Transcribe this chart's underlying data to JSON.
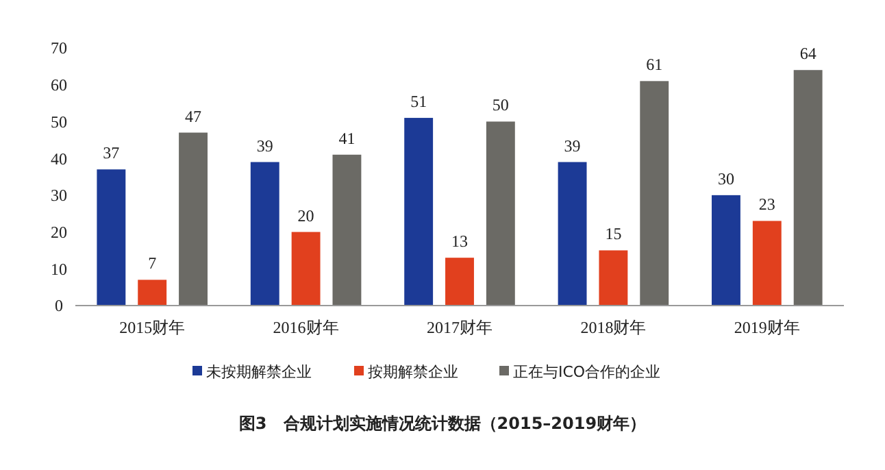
{
  "chart_data": {
    "type": "bar",
    "title": "图3　合规计划实施情况统计数据（2015–2019财年）",
    "categories": [
      "2015财年",
      "2016财年",
      "2017财年",
      "2018财年",
      "2019财年"
    ],
    "series": [
      {
        "name": "未按期解禁企业",
        "color": "#1c3a96",
        "values": [
          37,
          39,
          51,
          39,
          30
        ]
      },
      {
        "name": "按期解禁企业",
        "color": "#e1401e",
        "values": [
          7,
          20,
          13,
          15,
          23
        ]
      },
      {
        "name": "正在与ICO合作的企业",
        "color": "#6b6a65",
        "values": [
          47,
          41,
          50,
          61,
          64
        ]
      }
    ],
    "ylim": [
      0,
      70
    ],
    "yticks": [
      0,
      10,
      20,
      30,
      40,
      50,
      60,
      70
    ],
    "data_labels": true,
    "legend": "bottom",
    "grid": false
  }
}
